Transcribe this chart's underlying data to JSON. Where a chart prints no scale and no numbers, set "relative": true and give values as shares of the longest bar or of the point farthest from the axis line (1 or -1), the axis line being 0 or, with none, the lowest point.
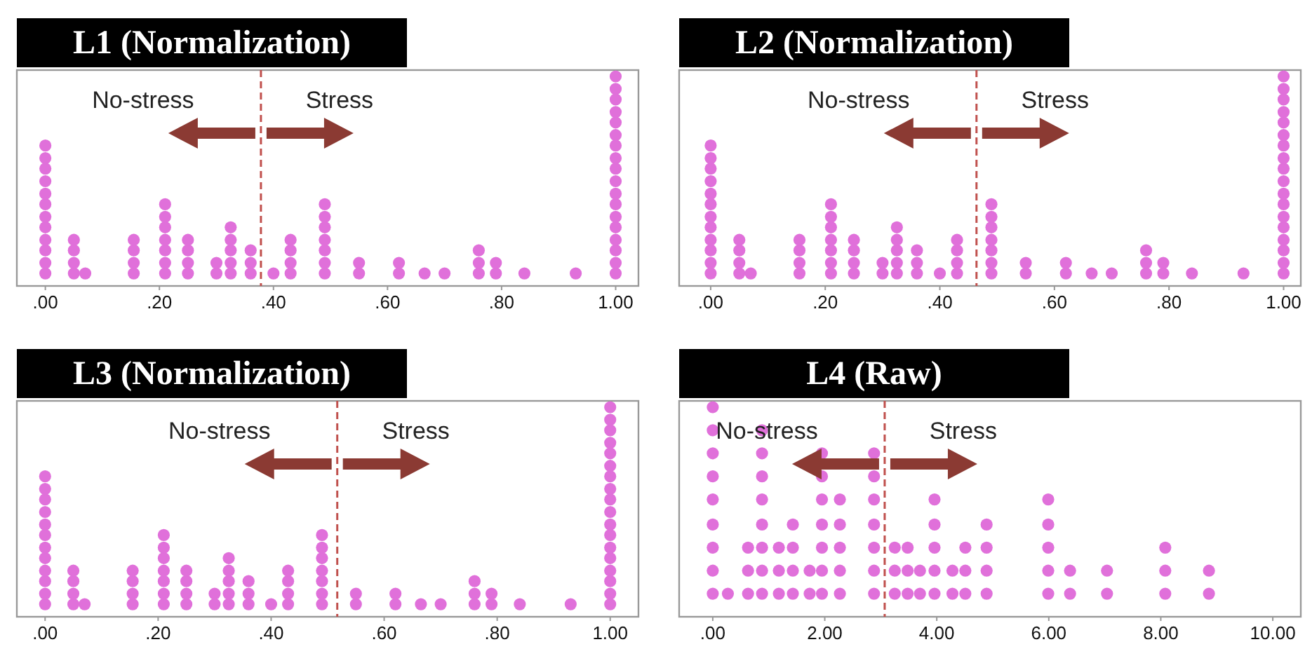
{
  "chart_data": [
    {
      "type": "scatter",
      "title": "L1 (Normalization)",
      "annotations": [
        "No-stress",
        "Stress"
      ],
      "relative": true,
      "marker": "circle",
      "color": "#e070da",
      "x": [
        0,
        0,
        0,
        0,
        0,
        0,
        0,
        0,
        0,
        0,
        0,
        0,
        0.05,
        0.05,
        0.05,
        0.05,
        0.07,
        0.155,
        0.155,
        0.155,
        0.155,
        0.21,
        0.21,
        0.21,
        0.21,
        0.21,
        0.21,
        0.21,
        0.25,
        0.25,
        0.25,
        0.25,
        0.3,
        0.3,
        0.325,
        0.325,
        0.325,
        0.325,
        0.325,
        0.36,
        0.36,
        0.36,
        0.4,
        0.43,
        0.43,
        0.43,
        0.43,
        0.49,
        0.49,
        0.49,
        0.49,
        0.49,
        0.49,
        0.49,
        0.55,
        0.55,
        0.62,
        0.62,
        0.665,
        0.7,
        0.76,
        0.76,
        0.76,
        0.79,
        0.79,
        0.84,
        0.93,
        1,
        1,
        1,
        1,
        1,
        1,
        1,
        1,
        1,
        1,
        1,
        1,
        1,
        1,
        1,
        1,
        1,
        1
      ],
      "values": [
        0.06,
        0.11,
        0.17,
        0.22,
        0.28,
        0.33,
        0.39,
        0.44,
        0.5,
        0.56,
        0.61,
        0.67,
        0.06,
        0.11,
        0.17,
        0.22,
        0.06,
        0.06,
        0.11,
        0.17,
        0.22,
        0.06,
        0.11,
        0.17,
        0.22,
        0.28,
        0.33,
        0.39,
        0.06,
        0.11,
        0.17,
        0.22,
        0.06,
        0.11,
        0.06,
        0.11,
        0.17,
        0.22,
        0.28,
        0.06,
        0.11,
        0.17,
        0.06,
        0.06,
        0.11,
        0.17,
        0.22,
        0.06,
        0.11,
        0.17,
        0.22,
        0.28,
        0.33,
        0.39,
        0.06,
        0.11,
        0.06,
        0.11,
        0.06,
        0.06,
        0.06,
        0.11,
        0.17,
        0.06,
        0.11,
        0.06,
        0.06,
        0.06,
        0.11,
        0.17,
        0.22,
        0.28,
        0.33,
        0.39,
        0.44,
        0.5,
        0.56,
        0.61,
        0.67,
        0.72,
        0.78,
        0.83,
        0.89,
        0.94,
        1
      ],
      "xlim": [
        -0.05,
        1.04
      ],
      "xticks": [
        {
          "value": 0,
          "label": ".00"
        },
        {
          "value": 0.2,
          "label": ".20"
        },
        {
          "value": 0.4,
          "label": ".40"
        },
        {
          "value": 0.6,
          "label": ".60"
        },
        {
          "value": 0.8,
          "label": ".80"
        },
        {
          "value": 1,
          "label": "1.00"
        }
      ],
      "ref_lines": [
        {
          "axis": "x",
          "value": 0.378,
          "color": "#c0504d",
          "line_style": "dashed"
        }
      ]
    },
    {
      "type": "scatter",
      "title": "L2 (Normalization)",
      "annotations": [
        "No-stress",
        "Stress"
      ],
      "relative": true,
      "marker": "circle",
      "color": "#e070da",
      "x": [
        0,
        0,
        0,
        0,
        0,
        0,
        0,
        0,
        0,
        0,
        0,
        0,
        0.05,
        0.05,
        0.05,
        0.05,
        0.07,
        0.155,
        0.155,
        0.155,
        0.155,
        0.21,
        0.21,
        0.21,
        0.21,
        0.21,
        0.21,
        0.21,
        0.25,
        0.25,
        0.25,
        0.25,
        0.3,
        0.3,
        0.325,
        0.325,
        0.325,
        0.325,
        0.325,
        0.36,
        0.36,
        0.36,
        0.4,
        0.43,
        0.43,
        0.43,
        0.43,
        0.49,
        0.49,
        0.49,
        0.49,
        0.49,
        0.49,
        0.49,
        0.55,
        0.55,
        0.62,
        0.62,
        0.665,
        0.7,
        0.76,
        0.76,
        0.76,
        0.79,
        0.79,
        0.84,
        0.93,
        1,
        1,
        1,
        1,
        1,
        1,
        1,
        1,
        1,
        1,
        1,
        1,
        1,
        1,
        1,
        1,
        1,
        1
      ],
      "values": [
        0.06,
        0.11,
        0.17,
        0.22,
        0.28,
        0.33,
        0.39,
        0.44,
        0.5,
        0.56,
        0.61,
        0.67,
        0.06,
        0.11,
        0.17,
        0.22,
        0.06,
        0.06,
        0.11,
        0.17,
        0.22,
        0.06,
        0.11,
        0.17,
        0.22,
        0.28,
        0.33,
        0.39,
        0.06,
        0.11,
        0.17,
        0.22,
        0.06,
        0.11,
        0.06,
        0.11,
        0.17,
        0.22,
        0.28,
        0.06,
        0.11,
        0.17,
        0.06,
        0.06,
        0.11,
        0.17,
        0.22,
        0.06,
        0.11,
        0.17,
        0.22,
        0.28,
        0.33,
        0.39,
        0.06,
        0.11,
        0.06,
        0.11,
        0.06,
        0.06,
        0.06,
        0.11,
        0.17,
        0.06,
        0.11,
        0.06,
        0.06,
        0.06,
        0.11,
        0.17,
        0.22,
        0.28,
        0.33,
        0.39,
        0.44,
        0.5,
        0.56,
        0.61,
        0.67,
        0.72,
        0.78,
        0.83,
        0.89,
        0.94,
        1
      ],
      "xlim": [
        -0.055,
        1.03
      ],
      "xticks": [
        {
          "value": 0,
          "label": ".00"
        },
        {
          "value": 0.2,
          "label": ".20"
        },
        {
          "value": 0.4,
          "label": ".40"
        },
        {
          "value": 0.6,
          "label": ".60"
        },
        {
          "value": 0.8,
          "label": ".80"
        },
        {
          "value": 1,
          "label": "1.00"
        }
      ],
      "ref_lines": [
        {
          "axis": "x",
          "value": 0.464,
          "color": "#c0504d",
          "line_style": "dashed"
        }
      ]
    },
    {
      "type": "scatter",
      "title": "L3 (Normalization)",
      "annotations": [
        "No-stress",
        "Stress"
      ],
      "relative": true,
      "marker": "circle",
      "color": "#e070da",
      "x": [
        0,
        0,
        0,
        0,
        0,
        0,
        0,
        0,
        0,
        0,
        0,
        0,
        0.05,
        0.05,
        0.05,
        0.05,
        0.07,
        0.155,
        0.155,
        0.155,
        0.155,
        0.21,
        0.21,
        0.21,
        0.21,
        0.21,
        0.21,
        0.21,
        0.25,
        0.25,
        0.25,
        0.25,
        0.3,
        0.3,
        0.325,
        0.325,
        0.325,
        0.325,
        0.325,
        0.36,
        0.36,
        0.36,
        0.4,
        0.43,
        0.43,
        0.43,
        0.43,
        0.49,
        0.49,
        0.49,
        0.49,
        0.49,
        0.49,
        0.49,
        0.55,
        0.55,
        0.62,
        0.62,
        0.665,
        0.7,
        0.76,
        0.76,
        0.76,
        0.79,
        0.79,
        0.84,
        0.93,
        1,
        1,
        1,
        1,
        1,
        1,
        1,
        1,
        1,
        1,
        1,
        1,
        1,
        1,
        1,
        1,
        1,
        1
      ],
      "values": [
        0.06,
        0.11,
        0.17,
        0.22,
        0.28,
        0.33,
        0.39,
        0.44,
        0.5,
        0.56,
        0.61,
        0.67,
        0.06,
        0.11,
        0.17,
        0.22,
        0.06,
        0.06,
        0.11,
        0.17,
        0.22,
        0.06,
        0.11,
        0.17,
        0.22,
        0.28,
        0.33,
        0.39,
        0.06,
        0.11,
        0.17,
        0.22,
        0.06,
        0.11,
        0.06,
        0.11,
        0.17,
        0.22,
        0.28,
        0.06,
        0.11,
        0.17,
        0.06,
        0.06,
        0.11,
        0.17,
        0.22,
        0.06,
        0.11,
        0.17,
        0.22,
        0.28,
        0.33,
        0.39,
        0.06,
        0.11,
        0.06,
        0.11,
        0.06,
        0.06,
        0.06,
        0.11,
        0.17,
        0.06,
        0.11,
        0.06,
        0.06,
        0.06,
        0.11,
        0.17,
        0.22,
        0.28,
        0.33,
        0.39,
        0.44,
        0.5,
        0.56,
        0.61,
        0.67,
        0.72,
        0.78,
        0.83,
        0.89,
        0.94,
        1
      ],
      "xlim": [
        -0.05,
        1.05
      ],
      "xticks": [
        {
          "value": 0,
          "label": ".00"
        },
        {
          "value": 0.2,
          "label": ".20"
        },
        {
          "value": 0.4,
          "label": ".40"
        },
        {
          "value": 0.6,
          "label": ".60"
        },
        {
          "value": 0.8,
          "label": ".80"
        },
        {
          "value": 1,
          "label": "1.00"
        }
      ],
      "ref_lines": [
        {
          "axis": "x",
          "value": 0.517,
          "color": "#c0504d",
          "line_style": "dashed"
        }
      ]
    },
    {
      "type": "scatter",
      "title": "L4 (Raw)",
      "annotations": [
        "No-stress",
        "Stress"
      ],
      "relative": true,
      "marker": "circle",
      "color": "#e070da",
      "x": [
        0,
        0,
        0,
        0,
        0,
        0,
        0,
        0,
        0,
        0.27,
        0.63,
        0.63,
        0.63,
        0.88,
        0.88,
        0.88,
        0.88,
        0.88,
        0.88,
        0.88,
        0.88,
        1.18,
        1.18,
        1.18,
        1.43,
        1.43,
        1.43,
        1.43,
        1.73,
        1.73,
        1.95,
        1.95,
        1.95,
        1.95,
        1.95,
        1.95,
        1.95,
        2.27,
        2.27,
        2.27,
        2.27,
        2.27,
        2.88,
        2.88,
        2.88,
        2.88,
        2.88,
        2.88,
        2.88,
        3.25,
        3.25,
        3.25,
        3.48,
        3.48,
        3.48,
        3.7,
        3.7,
        3.96,
        3.96,
        3.96,
        3.96,
        3.96,
        4.28,
        4.28,
        4.51,
        4.51,
        4.51,
        4.89,
        4.89,
        4.89,
        4.89,
        5.99,
        5.99,
        5.99,
        5.99,
        5.99,
        6.38,
        6.38,
        7.04,
        7.04,
        8.08,
        8.08,
        8.08,
        8.86,
        8.86
      ],
      "values": [
        0.11,
        0.22,
        0.33,
        0.44,
        0.56,
        0.67,
        0.78,
        0.89,
        1,
        0.11,
        0.11,
        0.22,
        0.33,
        0.11,
        0.22,
        0.33,
        0.44,
        0.56,
        0.67,
        0.78,
        0.89,
        0.11,
        0.22,
        0.33,
        0.11,
        0.22,
        0.33,
        0.44,
        0.11,
        0.22,
        0.11,
        0.22,
        0.33,
        0.44,
        0.56,
        0.67,
        0.78,
        0.11,
        0.22,
        0.33,
        0.44,
        0.56,
        0.11,
        0.22,
        0.33,
        0.44,
        0.56,
        0.67,
        0.78,
        0.11,
        0.22,
        0.33,
        0.11,
        0.22,
        0.33,
        0.11,
        0.22,
        0.11,
        0.22,
        0.33,
        0.44,
        0.56,
        0.11,
        0.22,
        0.11,
        0.22,
        0.33,
        0.11,
        0.22,
        0.33,
        0.44,
        0.11,
        0.22,
        0.33,
        0.44,
        0.56,
        0.11,
        0.22,
        0.11,
        0.22,
        0.11,
        0.22,
        0.33,
        0.11,
        0.22
      ],
      "xlim": [
        -0.6,
        10.5
      ],
      "xticks": [
        {
          "value": 0,
          "label": ".00"
        },
        {
          "value": 2,
          "label": "2.00"
        },
        {
          "value": 4,
          "label": "4.00"
        },
        {
          "value": 6,
          "label": "6.00"
        },
        {
          "value": 8,
          "label": "8.00"
        },
        {
          "value": 10,
          "label": "10.00"
        }
      ],
      "ref_lines": [
        {
          "axis": "x",
          "value": 3.07,
          "color": "#c0504d",
          "line_style": "dashed"
        }
      ]
    }
  ]
}
